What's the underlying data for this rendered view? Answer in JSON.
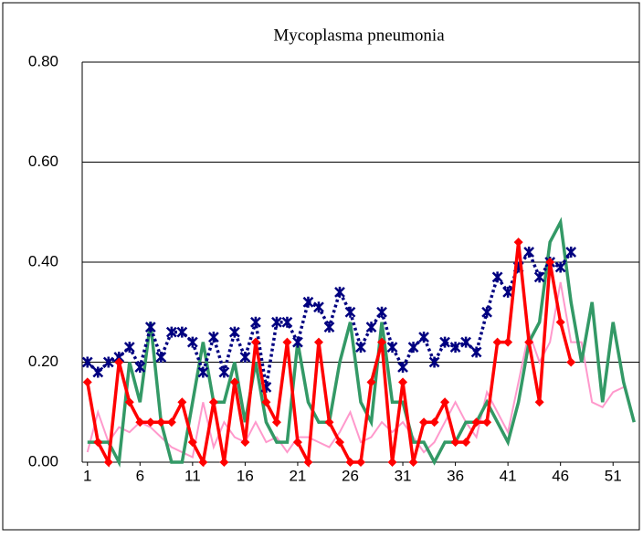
{
  "chart_data": {
    "type": "line",
    "title": "Mycoplasma pneumonia",
    "x": [
      1,
      2,
      3,
      4,
      5,
      6,
      7,
      8,
      9,
      10,
      11,
      12,
      13,
      14,
      15,
      16,
      17,
      18,
      19,
      20,
      21,
      22,
      23,
      24,
      25,
      26,
      27,
      28,
      29,
      30,
      31,
      32,
      33,
      34,
      35,
      36,
      37,
      38,
      39,
      40,
      41,
      42,
      43,
      44,
      45,
      46,
      47,
      48,
      49,
      50,
      51,
      52,
      53
    ],
    "xlim": [
      0.5,
      53.5
    ],
    "xticks": [
      1,
      6,
      11,
      16,
      21,
      26,
      31,
      36,
      41,
      46,
      51
    ],
    "ylim": [
      0,
      0.8
    ],
    "yticks": [
      {
        "value": 0,
        "label": "0.00"
      },
      {
        "value": 0.2,
        "label": "0.20"
      },
      {
        "value": 0.4,
        "label": "0.40"
      },
      {
        "value": 0.6,
        "label": "0.60"
      },
      {
        "value": 0.8,
        "label": "0.80"
      }
    ],
    "grid": true,
    "series": [
      {
        "color": "#ff99cc",
        "marker": "none",
        "values": [
          0.02,
          0.1,
          0.04,
          0.07,
          0.06,
          0.08,
          0.07,
          0.05,
          0.03,
          0.02,
          0.01,
          0.12,
          0.03,
          0.08,
          0.05,
          0.04,
          0.08,
          0.04,
          0.05,
          0.02,
          0.05,
          0.05,
          0.04,
          0.03,
          0.06,
          0.1,
          0.04,
          0.05,
          0.08,
          0.06,
          0.08,
          0.05,
          0.02,
          0.04,
          0.08,
          0.12,
          0.08,
          0.05,
          0.14,
          0.1,
          0.06,
          0.16,
          0.26,
          0.2,
          0.24,
          0.36,
          0.24,
          0.24,
          0.12,
          0.11,
          0.14,
          0.15,
          null
        ]
      },
      {
        "color": "#339966",
        "marker": "none",
        "values": [
          0.04,
          0.04,
          0.04,
          0.0,
          0.2,
          0.12,
          0.28,
          0.08,
          0.0,
          0.0,
          0.12,
          0.24,
          0.12,
          0.12,
          0.2,
          0.08,
          0.2,
          0.08,
          0.04,
          0.04,
          0.24,
          0.12,
          0.08,
          0.08,
          0.2,
          0.28,
          0.12,
          0.08,
          0.28,
          0.12,
          0.12,
          0.04,
          0.04,
          0.0,
          0.04,
          0.04,
          0.08,
          0.08,
          0.12,
          0.08,
          0.04,
          0.12,
          0.24,
          0.28,
          0.44,
          0.48,
          0.32,
          0.2,
          0.32,
          0.12,
          0.28,
          0.16,
          0.08
        ]
      },
      {
        "color": "#000080",
        "marker": "star",
        "values": [
          0.2,
          0.18,
          0.2,
          0.21,
          0.23,
          0.19,
          0.27,
          0.21,
          0.26,
          0.26,
          0.24,
          0.18,
          0.25,
          0.18,
          0.26,
          0.21,
          0.28,
          0.15,
          0.28,
          0.28,
          0.24,
          0.32,
          0.31,
          0.27,
          0.34,
          0.3,
          0.23,
          0.27,
          0.3,
          0.23,
          0.19,
          0.23,
          0.25,
          0.2,
          0.24,
          0.23,
          0.24,
          0.22,
          0.3,
          0.37,
          0.34,
          0.39,
          0.42,
          0.37,
          0.4,
          0.39,
          0.42,
          null,
          null,
          null,
          null,
          null,
          null
        ]
      },
      {
        "color": "#ff0000",
        "marker": "diamond",
        "values": [
          0.16,
          0.04,
          0.0,
          0.2,
          0.12,
          0.08,
          0.08,
          0.08,
          0.08,
          0.12,
          0.04,
          0.0,
          0.12,
          0.0,
          0.16,
          0.04,
          0.24,
          0.12,
          0.08,
          0.24,
          0.04,
          0.0,
          0.24,
          0.08,
          0.04,
          0.0,
          0.0,
          0.16,
          0.24,
          0.0,
          0.16,
          0.0,
          0.08,
          0.08,
          0.12,
          0.04,
          0.04,
          0.08,
          0.08,
          0.24,
          0.24,
          0.44,
          0.24,
          0.12,
          0.4,
          0.28,
          0.2,
          null,
          null,
          null,
          null,
          null,
          null
        ]
      }
    ]
  }
}
